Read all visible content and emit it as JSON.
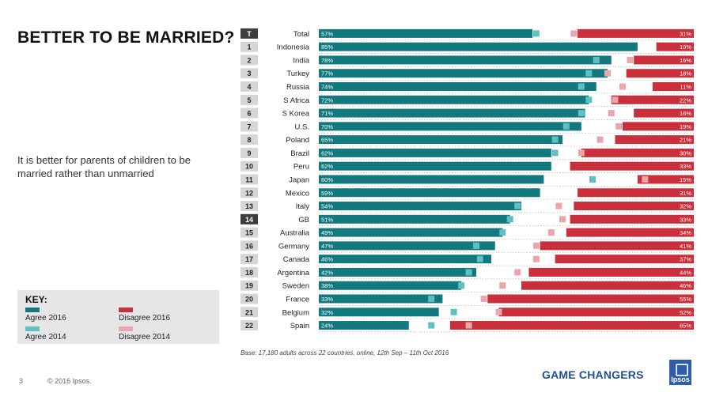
{
  "title": "BETTER TO BE MARRIED?",
  "description": "It is better for parents of children to be married rather than unmarried",
  "key": {
    "title": "KEY:",
    "agree2016": "Agree 2016",
    "disagree2016": "Disagree 2016",
    "agree2014": "Agree 2014",
    "disagree2014": "Disagree 2014"
  },
  "colors": {
    "agree2016": "#127a7e",
    "disagree2016": "#c9303c",
    "agree2014": "#5fbfc2",
    "disagree2014": "#eba5ab",
    "rank_bg": "#d6d6d6",
    "rank_highlight": "#3d3d3d"
  },
  "footer": {
    "page_number": "3",
    "copyright": "© 2016 Ipsos.",
    "base_note": "Base: 17,180 adults across 22 countries, online, 12th Sep – 11th Oct 2016",
    "tagline": "GAME CHANGERS",
    "logo_text": "Ipsos"
  },
  "chart_data": {
    "type": "bar",
    "orientation": "horizontal-diverging",
    "title": "BETTER TO BE MARRIED?",
    "xlim": [
      0,
      100
    ],
    "highlight_rank": "14",
    "ranks": [
      "T",
      "1",
      "2",
      "3",
      "4",
      "5",
      "6",
      "7",
      "8",
      "9",
      "10",
      "11",
      "12",
      "13",
      "14",
      "15",
      "16",
      "17",
      "18",
      "19",
      "20",
      "21",
      "22"
    ],
    "categories": [
      "Total",
      "Indonesia",
      "India",
      "Turkey",
      "Russia",
      "S Africa",
      "S Korea",
      "U.S.",
      "Poland",
      "Brazil",
      "Peru",
      "Japan",
      "Mexico",
      "Italy",
      "GB",
      "Australia",
      "Germany",
      "Canada",
      "Argentina",
      "Sweden",
      "France",
      "Belgium",
      "Spain"
    ],
    "series": [
      {
        "name": "Agree 2016",
        "values": [
          57,
          85,
          78,
          77,
          74,
          72,
          71,
          70,
          65,
          62,
          62,
          60,
          59,
          54,
          51,
          49,
          47,
          46,
          42,
          38,
          33,
          32,
          24
        ]
      },
      {
        "name": "Disagree 2016",
        "values": [
          31,
          10,
          16,
          18,
          11,
          22,
          16,
          19,
          21,
          30,
          33,
          15,
          31,
          32,
          33,
          34,
          41,
          37,
          44,
          46,
          55,
          52,
          65
        ]
      },
      {
        "name": "Agree 2014",
        "values": [
          58,
          null,
          74,
          72,
          70,
          72,
          70,
          66,
          63,
          63,
          null,
          73,
          null,
          53,
          51,
          49,
          42,
          43,
          40,
          38,
          30,
          36,
          30
        ]
      },
      {
        "name": "Disagree 2014",
        "values": [
          32,
          null,
          17,
          23,
          19,
          21,
          22,
          20,
          25,
          30,
          null,
          13,
          null,
          36,
          35,
          38,
          42,
          42,
          47,
          51,
          56,
          52,
          60
        ]
      }
    ]
  }
}
